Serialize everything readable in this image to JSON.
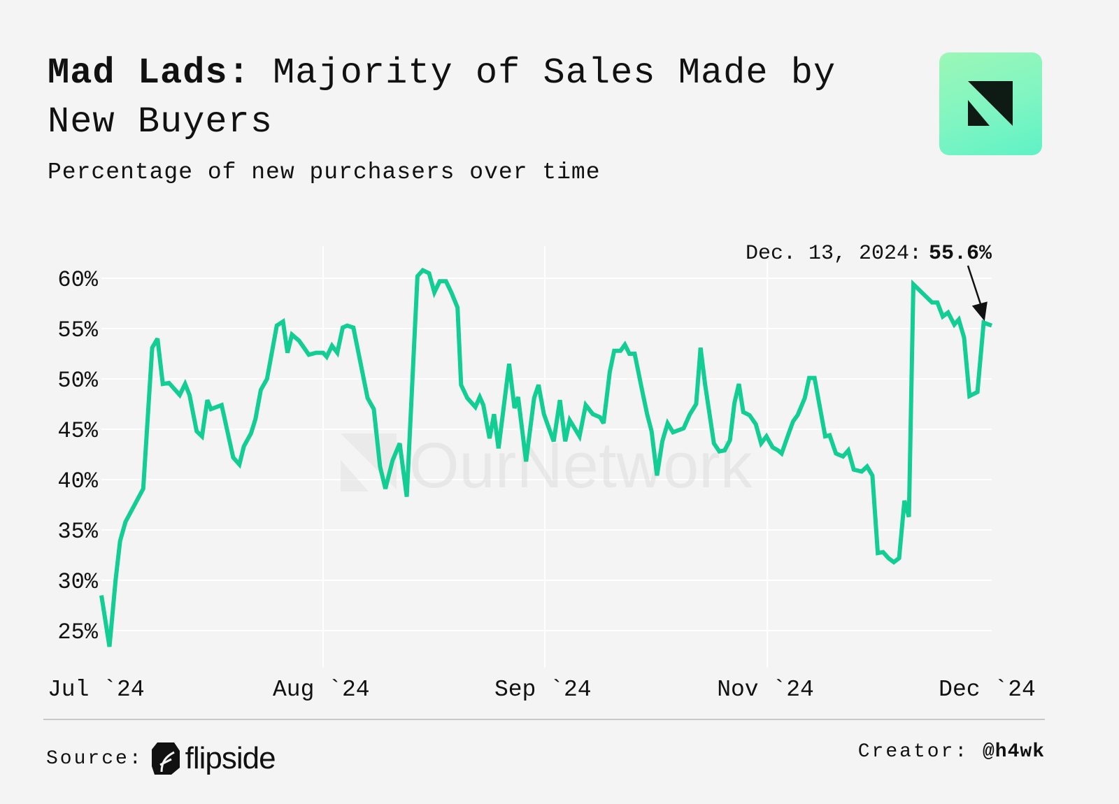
{
  "header": {
    "title_bold": "Mad Lads:",
    "title_rest": " Majority of Sales Made by New Buyers",
    "subtitle": "Percentage of new purchasers over time"
  },
  "logo": {
    "name": "ournetwork-logo-icon",
    "gradient_from": "#9cf7b6",
    "gradient_to": "#5ff2c6",
    "glyph_color": "#0e1a14"
  },
  "watermark": {
    "text": "OurNetwork"
  },
  "footer": {
    "source_label": "Source:",
    "source_brand": "flipside",
    "creator_label": "Creator:",
    "creator_handle": "@h4wk"
  },
  "colors": {
    "line": "#12cd94",
    "background": "#f4f4f4",
    "grid": "#ffffff",
    "annotation": "#111111"
  },
  "chart_data": {
    "type": "line",
    "title": "Mad Lads: Majority of Sales Made by New Buyers",
    "subtitle": "Percentage of new purchasers over time",
    "xlabel": "",
    "ylabel": "",
    "ylim": [
      23,
      62
    ],
    "grid": true,
    "legend": "none",
    "y_ticks": [
      {
        "value": 60,
        "label": "60%"
      },
      {
        "value": 55,
        "label": "55%"
      },
      {
        "value": 50,
        "label": "50%"
      },
      {
        "value": 45,
        "label": "45%"
      },
      {
        "value": 40,
        "label": "40%"
      },
      {
        "value": 35,
        "label": "35%"
      },
      {
        "value": 30,
        "label": "30%"
      },
      {
        "value": 25,
        "label": "25%"
      }
    ],
    "x_range": [
      0,
      100
    ],
    "x_ticks": [
      {
        "value": 0,
        "label": "Jul `24"
      },
      {
        "value": 24.9,
        "label": "Aug `24"
      },
      {
        "value": 49.8,
        "label": "Sep `24"
      },
      {
        "value": 74.8,
        "label": "Nov `24"
      },
      {
        "value": 99.7,
        "label": "Dec `24"
      }
    ],
    "annotation": {
      "date": "Dec. 13, 2024:",
      "value_label": "55.6%",
      "x": 99.2,
      "y": 55.6
    },
    "series": [
      {
        "name": "New purchasers %",
        "x": [
          0,
          0.2,
          0.9,
          1.6,
          2.1,
          2.7,
          4.7,
          5.7,
          6.3,
          6.9,
          7.6,
          8.8,
          9.4,
          9.9,
          10.7,
          11.3,
          11.9,
          12.3,
          13.5,
          14.8,
          15.5,
          16.0,
          16.8,
          17.3,
          17.9,
          18.6,
          19.7,
          20.4,
          20.9,
          21.4,
          22.2,
          23.3,
          24.1,
          24.9,
          25.3,
          25.9,
          26.5,
          27.1,
          27.6,
          28.3,
          29.9,
          30.6,
          31.3,
          31.9,
          32.7,
          33.5,
          34.3,
          35.5,
          36.1,
          36.8,
          37.4,
          38.0,
          38.7,
          39.3,
          40.0,
          40.4,
          41.1,
          42.0,
          42.5,
          42.9,
          43.6,
          44.1,
          44.6,
          45.8,
          46.4,
          46.8,
          47.7,
          48.6,
          49.1,
          49.7,
          50.8,
          51.5,
          52.1,
          52.6,
          53.7,
          54.4,
          55.2,
          56.0,
          56.4,
          57.1,
          57.6,
          58.3,
          58.8,
          59.3,
          59.9,
          60.7,
          61.3,
          61.8,
          62.4,
          63.0,
          63.6,
          64.2,
          65.4,
          66.1,
          66.8,
          67.3,
          67.8,
          68.8,
          69.4,
          70.0,
          70.6,
          71.1,
          71.6,
          72.1,
          72.8,
          73.5,
          74.1,
          74.7,
          75.4,
          76.0,
          76.4,
          77.2,
          77.7,
          78.2,
          79.0,
          79.5,
          80.1,
          81.3,
          81.8,
          82.5,
          83.3,
          83.9,
          84.5,
          85.4,
          86.0,
          86.6,
          87.2,
          87.8,
          88.4,
          89.0,
          89.6,
          90.2,
          90.7,
          91.2,
          93.3,
          93.9,
          94.5,
          95.1,
          95.8,
          96.3,
          96.9,
          97.5,
          98.4,
          99.1,
          100
        ],
        "y": [
          28.5,
          27.4,
          23.4,
          30.1,
          33.9,
          35.8,
          39.1,
          53.1,
          54.0,
          49.5,
          49.6,
          48.4,
          49.5,
          48.4,
          44.8,
          44.3,
          47.9,
          47.0,
          47.4,
          42.2,
          41.5,
          43.3,
          44.6,
          46.0,
          48.9,
          50.0,
          55.3,
          55.7,
          52.6,
          54.4,
          53.8,
          52.4,
          52.6,
          52.6,
          52.2,
          53.3,
          52.6,
          55.1,
          55.3,
          55.1,
          48.1,
          47.0,
          41.3,
          39.1,
          41.9,
          43.6,
          38.3,
          60.2,
          60.8,
          60.5,
          58.6,
          59.7,
          59.7,
          58.6,
          57.1,
          49.4,
          48.1,
          47.2,
          48.2,
          47.4,
          44.1,
          46.5,
          43.1,
          51.5,
          47.1,
          48.2,
          41.8,
          48.1,
          49.4,
          46.5,
          43.8,
          47.9,
          43.8,
          45.9,
          44.3,
          47.4,
          46.5,
          46.2,
          45.6,
          50.7,
          52.8,
          52.8,
          53.4,
          52.5,
          52.5,
          49.0,
          46.5,
          44.8,
          40.4,
          43.8,
          45.6,
          44.7,
          45.1,
          46.5,
          47.5,
          53.1,
          49.5,
          43.6,
          42.8,
          42.9,
          43.9,
          47.6,
          49.5,
          46.7,
          46.4,
          45.5,
          43.6,
          44.3,
          43.2,
          42.9,
          42.6,
          44.6,
          45.8,
          46.4,
          48.1,
          50.1,
          50.1,
          44.3,
          44.4,
          42.6,
          42.3,
          42.9,
          41.0,
          40.8,
          41.3,
          40.4,
          32.7,
          32.8,
          32.2,
          31.8,
          32.2,
          37.9,
          36.3,
          59.4,
          57.6,
          57.6,
          56.2,
          56.6,
          55.4,
          55.9,
          54.1,
          48.3,
          48.7,
          55.6,
          55.3
        ]
      }
    ]
  }
}
